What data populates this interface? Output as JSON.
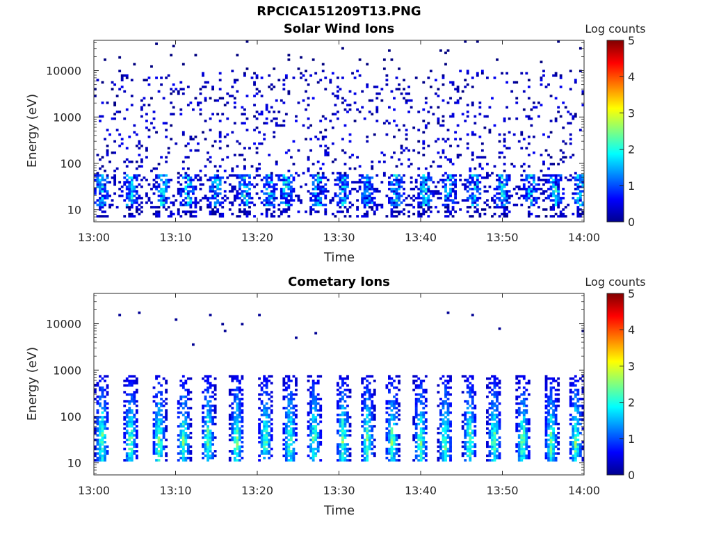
{
  "page_title": "RPCICA151209T13.PNG",
  "chart_data": [
    {
      "type": "heatmap",
      "title": "Solar Wind Ions",
      "xlabel": "Time",
      "ylabel": "Energy (eV)",
      "x_ticks": [
        "13:00",
        "13:10",
        "13:20",
        "13:30",
        "13:40",
        "13:50",
        "14:00"
      ],
      "x_range_minutes": [
        0,
        60
      ],
      "y_ticks": [
        "10",
        "100",
        "1000",
        "10000"
      ],
      "y_range": [
        5.5,
        45000
      ],
      "y_scale": "log",
      "colorbar": {
        "label": "Log counts",
        "ticks": [
          "0",
          "1",
          "2",
          "3",
          "4",
          "5"
        ],
        "range": [
          0,
          5
        ],
        "colormap": "jet"
      },
      "low_energy_bursts_min": [
        1,
        4.5,
        8.5,
        11.5,
        15,
        18.5,
        21.5,
        23.5,
        27.5,
        30.5,
        33.5,
        37,
        40.5,
        43.5,
        46.5,
        50,
        53.5,
        56.5,
        59.5
      ],
      "band_energy_eV": [
        12,
        60
      ],
      "background_energy_eV": [
        60,
        10000
      ],
      "band_log_counts": [
        0.3,
        2.4
      ],
      "background_log_counts": [
        0,
        0.6
      ]
    },
    {
      "type": "heatmap",
      "title": "Cometary Ions",
      "xlabel": "Time",
      "ylabel": "Energy (eV)",
      "x_ticks": [
        "13:00",
        "13:10",
        "13:20",
        "13:30",
        "13:40",
        "13:50",
        "14:00"
      ],
      "x_range_minutes": [
        0,
        60
      ],
      "y_ticks": [
        "10",
        "100",
        "1000",
        "10000"
      ],
      "y_range": [
        5.5,
        45000
      ],
      "y_scale": "log",
      "colorbar": {
        "label": "Log counts",
        "ticks": [
          "0",
          "1",
          "2",
          "3",
          "4",
          "5"
        ],
        "range": [
          0,
          5
        ],
        "colormap": "jet"
      },
      "burst_centers_min": [
        1,
        4.5,
        8,
        11,
        14,
        17.5,
        21,
        24,
        27,
        30.5,
        33.5,
        36.5,
        40,
        43,
        46,
        49,
        52.5,
        56,
        59
      ],
      "burst_peak_energy_eV": 30,
      "burst_max_energy_eV": 800,
      "burst_log_counts": [
        0.3,
        3.0
      ],
      "sparse_high_energy_eV": [
        3000,
        25000
      ]
    }
  ],
  "colors": {
    "axis": "#262626",
    "background": "#ffffff"
  }
}
